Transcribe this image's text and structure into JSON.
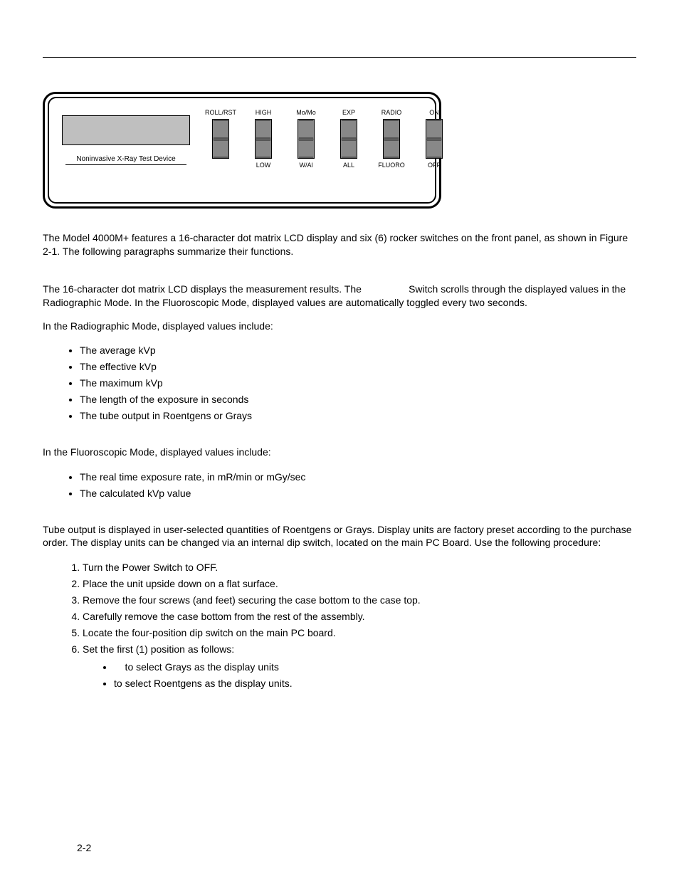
{
  "diagram": {
    "lcd_label": "Noninvasive X-Ray Test Device",
    "lcd_bg": "#bfbfbf",
    "rocker_fill": "#888888",
    "switches": [
      {
        "top": "ROLL/RST",
        "bottom": ""
      },
      {
        "top": "HIGH",
        "bottom": "LOW"
      },
      {
        "top": "Mo/Mo",
        "bottom": "W/Al"
      },
      {
        "top": "EXP",
        "bottom": "ALL"
      },
      {
        "top": "RADIO",
        "bottom": "FLUORO"
      },
      {
        "top": "ON",
        "bottom": "OFF"
      }
    ]
  },
  "paragraphs": {
    "intro": "The Model 4000M+ features a 16-character dot matrix LCD display and six (6) rocker switches on the front panel, as shown in Figure 2-1.  The following paragraphs summarize their functions.",
    "display_desc_a": "The 16-character dot matrix LCD displays the measurement results.  The ",
    "display_desc_b": " Switch scrolls through the displayed values in the Radiographic Mode.  In the Fluoroscopic Mode, displayed values are automatically toggled every two seconds.",
    "radio_intro": "In the Radiographic Mode, displayed values include:",
    "fluoro_intro": "In the Fluoroscopic Mode, displayed values include:",
    "tube_output": "Tube output is displayed in user-selected quantities of Roentgens or Grays.  Display units are factory preset according to the purchase order.  The display units can be changed via an internal dip switch, located on the main PC Board.  Use the following procedure:"
  },
  "radio_list": [
    "The average kVp",
    "The effective kVp",
    "The maximum kVp",
    "The length of the exposure in seconds",
    "The tube output in Roentgens or Grays"
  ],
  "fluoro_list": [
    "The real time exposure rate, in mR/min or mGy/sec",
    "The calculated kVp value"
  ],
  "steps": [
    "Turn the Power Switch to OFF.",
    "Place the unit upside down on a flat surface.",
    "Remove the four screws (and feet) securing the case bottom to the case top.",
    "Carefully remove the case bottom from the rest of the assembly.",
    "Locate the four-position dip switch on the main PC board.",
    "Set the first (1) position as follows:"
  ],
  "sub_steps": [
    " to select Grays as the display units",
    "to select Roentgens as the display units."
  ],
  "page_number": "2-2",
  "colors": {
    "text": "#000000",
    "background": "#ffffff"
  },
  "typography": {
    "body_fontsize_pt": 10.5,
    "switch_label_fontsize_pt": 7
  }
}
